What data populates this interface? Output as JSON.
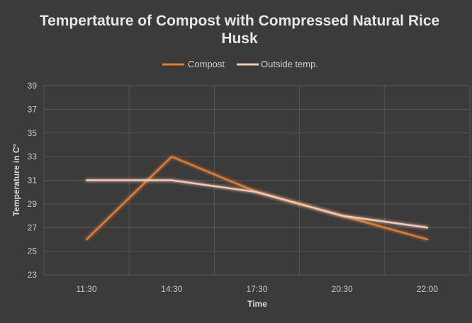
{
  "chart_data": {
    "type": "line",
    "title": "Tempertature of Compost with Compressed Natural Rice Husk",
    "title_lines": [
      "Tempertature of Compost with Compressed Natural Rice",
      "Husk"
    ],
    "xlabel": "Time",
    "ylabel": "Temperature in C°",
    "categories": [
      "11:30",
      "14:30",
      "17:30",
      "20:30",
      "22:00"
    ],
    "ylim": [
      23,
      39
    ],
    "yticks": [
      "23",
      "25",
      "27",
      "29",
      "31",
      "33",
      "35",
      "37",
      "39"
    ],
    "legend_position": "top-center",
    "grid": true,
    "series": [
      {
        "name": "Compost",
        "values": [
          26,
          33,
          30,
          28,
          26
        ],
        "color": "#e07b30"
      },
      {
        "name": "Outside temp.",
        "values": [
          31,
          31,
          30,
          28,
          27
        ],
        "color": "#f3c9b4"
      }
    ]
  }
}
